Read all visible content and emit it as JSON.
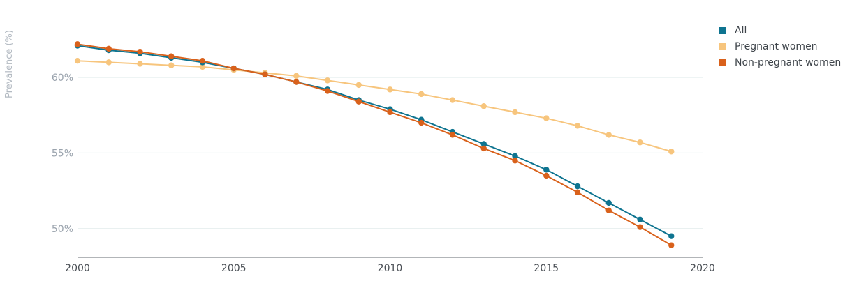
{
  "chart_data": {
    "type": "line",
    "title": "",
    "xlabel": "",
    "ylabel": "Prevalence (%)",
    "xlim": [
      2000,
      2020
    ],
    "ylim": [
      48.1,
      64.2
    ],
    "x_ticks": [
      2000,
      2005,
      2010,
      2015,
      2020
    ],
    "y_ticks": [
      {
        "value": 50,
        "label": "50%"
      },
      {
        "value": 55,
        "label": "55%"
      },
      {
        "value": 60,
        "label": "60%"
      }
    ],
    "grid": "horizontal",
    "legend_position": "top-right",
    "x": [
      2000,
      2001,
      2002,
      2003,
      2004,
      2005,
      2006,
      2007,
      2008,
      2009,
      2010,
      2011,
      2012,
      2013,
      2014,
      2015,
      2016,
      2017,
      2018,
      2019
    ],
    "series": [
      {
        "name": "All",
        "color": "#0e7490",
        "values": [
          62.1,
          61.8,
          61.6,
          61.3,
          61.0,
          60.6,
          60.2,
          59.7,
          59.2,
          58.5,
          57.9,
          57.2,
          56.4,
          55.6,
          54.8,
          53.9,
          52.8,
          51.7,
          50.6,
          49.5
        ]
      },
      {
        "name": "Pregnant women",
        "color": "#f7c57d",
        "values": [
          61.1,
          61.0,
          60.9,
          60.8,
          60.7,
          60.5,
          60.3,
          60.1,
          59.8,
          59.5,
          59.2,
          58.9,
          58.5,
          58.1,
          57.7,
          57.3,
          56.8,
          56.2,
          55.7,
          55.1
        ]
      },
      {
        "name": "Non-pregnant women",
        "color": "#d9611b",
        "values": [
          62.2,
          61.9,
          61.7,
          61.4,
          61.1,
          60.6,
          60.2,
          59.7,
          59.1,
          58.4,
          57.7,
          57.0,
          56.2,
          55.3,
          54.5,
          53.5,
          52.4,
          51.2,
          50.1,
          48.9
        ]
      }
    ]
  }
}
